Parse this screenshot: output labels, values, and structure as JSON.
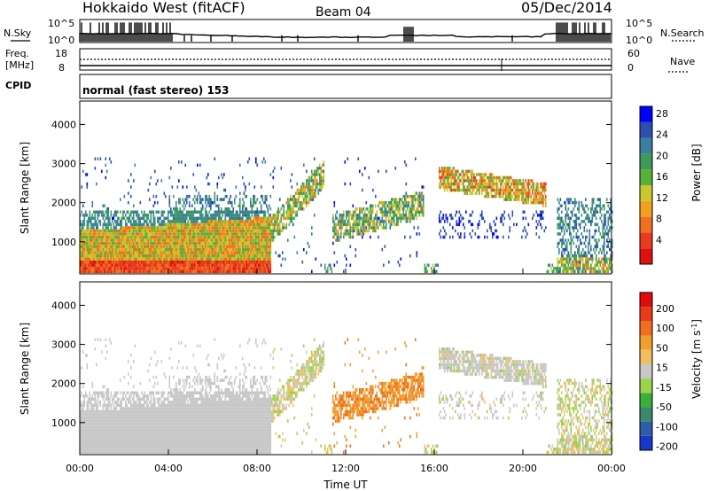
{
  "header": {
    "radar": "Hokkaido West (fitACF)",
    "beam": "Beam 04",
    "date": "05/Dec/2014"
  },
  "top_panels": {
    "nsky_label": "N.Sky",
    "nsearch_label": "N.Search",
    "noise_ticks": [
      "10^5",
      "10^0"
    ],
    "freq_label": "Freq.",
    "freq_unit": "[MHz]",
    "freq_ticks": [
      "18",
      "8"
    ],
    "nave_label": "Nave",
    "nave_ticks": [
      "60",
      "0"
    ],
    "cpid_label": "CPID",
    "cpid_value": "normal (fast stereo) 153"
  },
  "chart_data": [
    {
      "type": "heatmap",
      "name": "power",
      "ylabel": "Slant Range [km]",
      "xlabel": "",
      "x_range_hours": [
        0,
        24
      ],
      "ylim": [
        180,
        4600
      ],
      "yticks": [
        "1000",
        "2000",
        "3000",
        "4000"
      ],
      "colorbar_label": "Power [dB]",
      "colorbar_ticks": [
        "4",
        "8",
        "12",
        "16",
        "20",
        "24",
        "28"
      ],
      "colorbar_colors": [
        "#0000ff",
        "#2c4fb0",
        "#3a7f9e",
        "#3f9a5e",
        "#58b23a",
        "#c8c830",
        "#f2a020",
        "#f07020",
        "#e83c1c",
        "#e01010"
      ]
    },
    {
      "type": "heatmap",
      "name": "velocity",
      "ylabel": "Slant Range [km]",
      "xlabel": "Time UT",
      "x_range_hours": [
        0,
        24
      ],
      "ylim": [
        180,
        4600
      ],
      "yticks": [
        "1000",
        "2000",
        "3000",
        "4000"
      ],
      "xticks": [
        "00:00",
        "04:00",
        "08:00",
        "12:00",
        "16:00",
        "20:00",
        "00:00"
      ],
      "colorbar_label": "Velocity [m s",
      "colorbar_label_sup": "-1",
      "colorbar_label_end": "]",
      "colorbar_ticks": [
        "200",
        "100",
        "50",
        "15",
        "-15",
        "-50",
        "-100",
        "-200"
      ],
      "colorbar_colors": [
        "#1838c8",
        "#2b5ea8",
        "#3a8a6a",
        "#3cae3c",
        "#9ad44a",
        "#c8c8c8",
        "#f0c060",
        "#f0a030",
        "#f07020",
        "#e83c18",
        "#e00c0c"
      ]
    }
  ]
}
